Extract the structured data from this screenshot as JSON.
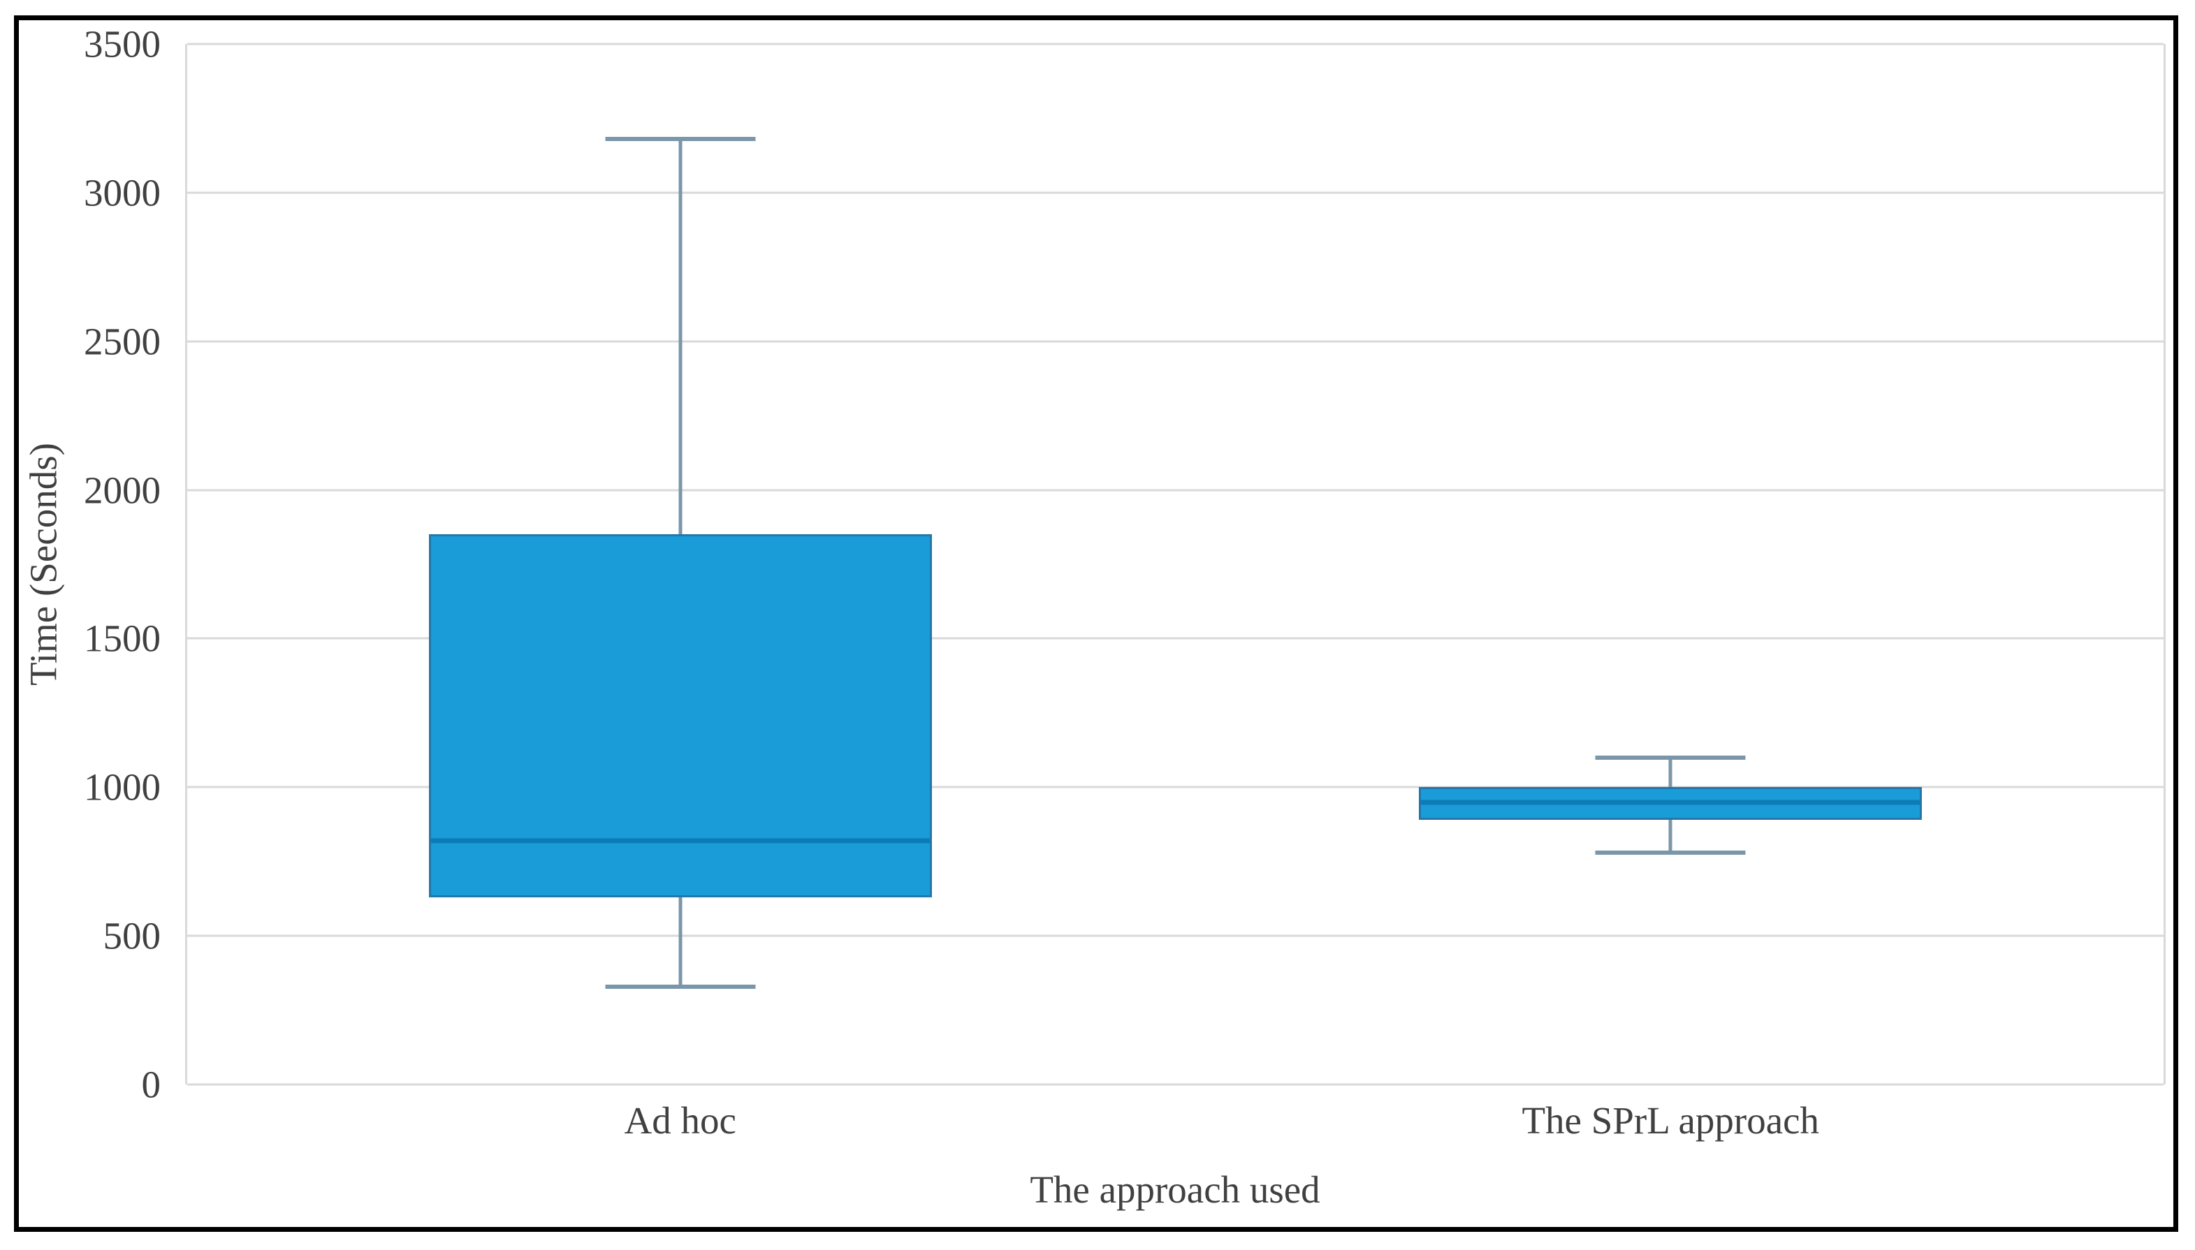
{
  "chart_data": {
    "type": "boxplot",
    "title": "",
    "xlabel": "The approach used",
    "ylabel": "Time (Seconds)",
    "ylim": [
      0,
      3500
    ],
    "yticks": [
      0,
      500,
      1000,
      1500,
      2000,
      2500,
      3000,
      3500
    ],
    "categories": [
      "Ad hoc",
      "The SPrL approach"
    ],
    "series": [
      {
        "label": "Ad hoc",
        "whisker_low": 330,
        "q1": 630,
        "median": 820,
        "q3": 1850,
        "whisker_high": 3180
      },
      {
        "label": "The SPrL approach",
        "whisker_low": 780,
        "q1": 890,
        "median": 950,
        "q3": 1000,
        "whisker_high": 1100
      }
    ],
    "grid": "horizontal",
    "legend": "none"
  },
  "style": {
    "box_fill": "#199CD8",
    "box_border": "#2377A9",
    "median_color": "#0C7CB6",
    "whisker_color": "#7B96A9",
    "gridline_color": "#D9D9D9",
    "text_color": "#404040",
    "frame_color": "#000000",
    "background": "#FFFFFF"
  }
}
